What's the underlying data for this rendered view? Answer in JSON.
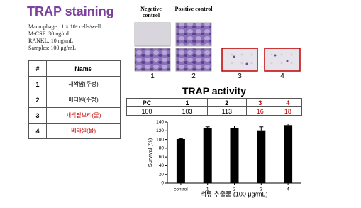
{
  "header": {
    "title": "TRAP staining"
  },
  "conditions": [
    "Macrophage : 1 × 10⁴ cells/well",
    "M-CSF: 30 ng/mL",
    "RANKL:  10 ng/mL",
    "Samples: 100 μg/mL"
  ],
  "sample_table": {
    "header": [
      "#",
      "Name"
    ],
    "rows": [
      [
        "1",
        "새싹밥(주정)"
      ],
      [
        "2",
        "베타원(주정)"
      ],
      [
        "3",
        "새싹팥보리(물)"
      ],
      [
        "4",
        "베타원(물)"
      ]
    ]
  },
  "staining_images": {
    "labels": [
      "Negative control",
      "Positive control"
    ],
    "numbers": [
      "1",
      "2",
      "3",
      "4"
    ]
  },
  "trap_activity": {
    "title": "TRAP activity",
    "header": [
      "PC",
      "1",
      "2",
      "3",
      "4"
    ],
    "values": [
      100,
      103,
      113,
      16,
      18
    ]
  },
  "survival_chart": {
    "type": "bar",
    "categories": [
      "control",
      "1",
      "2",
      "3",
      "4"
    ],
    "values": [
      101,
      127,
      127,
      121,
      133
    ],
    "errors": [
      1,
      2,
      4,
      8,
      3
    ],
    "color": "#000000",
    "ylim": [
      0,
      140
    ],
    "yticks": [
      0,
      20,
      40,
      60,
      80,
      100,
      120,
      140
    ],
    "y_label": "Survival (%)",
    "x_label": "백류 추출물 (100 μg/mL)"
  }
}
